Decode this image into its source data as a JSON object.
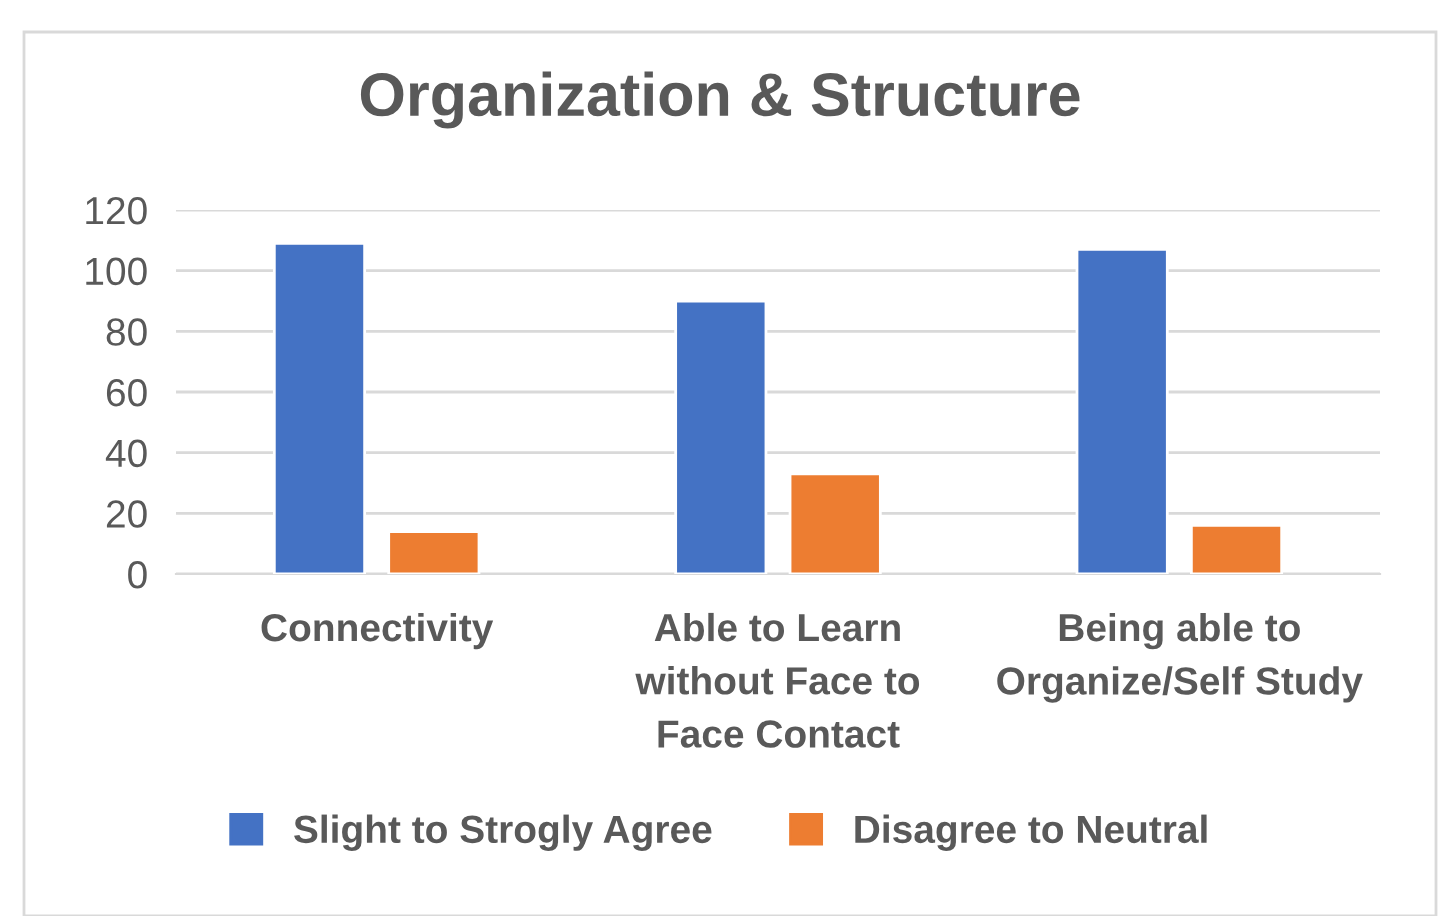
{
  "chart_data": {
    "type": "bar",
    "title": "Organization & Structure",
    "categories": [
      "Connectivity",
      "Able to Learn\nwithout Face to\nFace Contact",
      "Being able to\nOrganize/Self Study"
    ],
    "series": [
      {
        "name": "Slight to Strogly Agree",
        "color": "#4472c4",
        "values": [
          109,
          90,
          107
        ]
      },
      {
        "name": "Disagree to Neutral",
        "color": "#ed7d31",
        "values": [
          14,
          33,
          16
        ]
      }
    ],
    "ylim": [
      0,
      120
    ],
    "yticks": [
      0,
      20,
      40,
      60,
      80,
      100,
      120
    ],
    "grid": "y",
    "legend": "bottom"
  }
}
